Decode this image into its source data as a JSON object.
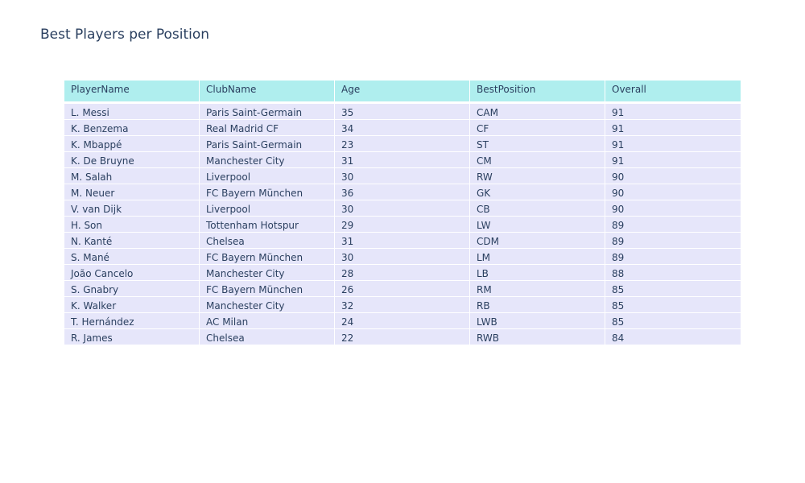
{
  "chart_data": {
    "type": "table",
    "title": "Best Players per Position",
    "columns": [
      "PlayerName",
      "ClubName",
      "Age",
      "BestPosition",
      "Overall"
    ],
    "rows": [
      [
        "L. Messi",
        "Paris Saint-Germain",
        "35",
        "CAM",
        "91"
      ],
      [
        "K. Benzema",
        "Real Madrid CF",
        "34",
        "CF",
        "91"
      ],
      [
        "K. Mbappé",
        "Paris Saint-Germain",
        "23",
        "ST",
        "91"
      ],
      [
        "K. De Bruyne",
        "Manchester City",
        "31",
        "CM",
        "91"
      ],
      [
        "M. Salah",
        "Liverpool",
        "30",
        "RW",
        "90"
      ],
      [
        "M. Neuer",
        "FC Bayern München",
        "36",
        "GK",
        "90"
      ],
      [
        "V. van Dijk",
        "Liverpool",
        "30",
        "CB",
        "90"
      ],
      [
        "H. Son",
        "Tottenham Hotspur",
        "29",
        "LW",
        "89"
      ],
      [
        "N. Kanté",
        "Chelsea",
        "31",
        "CDM",
        "89"
      ],
      [
        "S. Mané",
        "FC Bayern München",
        "30",
        "LM",
        "89"
      ],
      [
        "João Cancelo",
        "Manchester City",
        "28",
        "LB",
        "88"
      ],
      [
        "S. Gnabry",
        "FC Bayern München",
        "26",
        "RM",
        "85"
      ],
      [
        "K. Walker",
        "Manchester City",
        "32",
        "RB",
        "85"
      ],
      [
        "T. Hernández",
        "AC Milan",
        "24",
        "LWB",
        "85"
      ],
      [
        "R. James",
        "Chelsea",
        "22",
        "RWB",
        "84"
      ]
    ],
    "header_fill": "#afeeee",
    "cell_fill": "#e6e6fa",
    "text_color": "#2a3f5f"
  }
}
